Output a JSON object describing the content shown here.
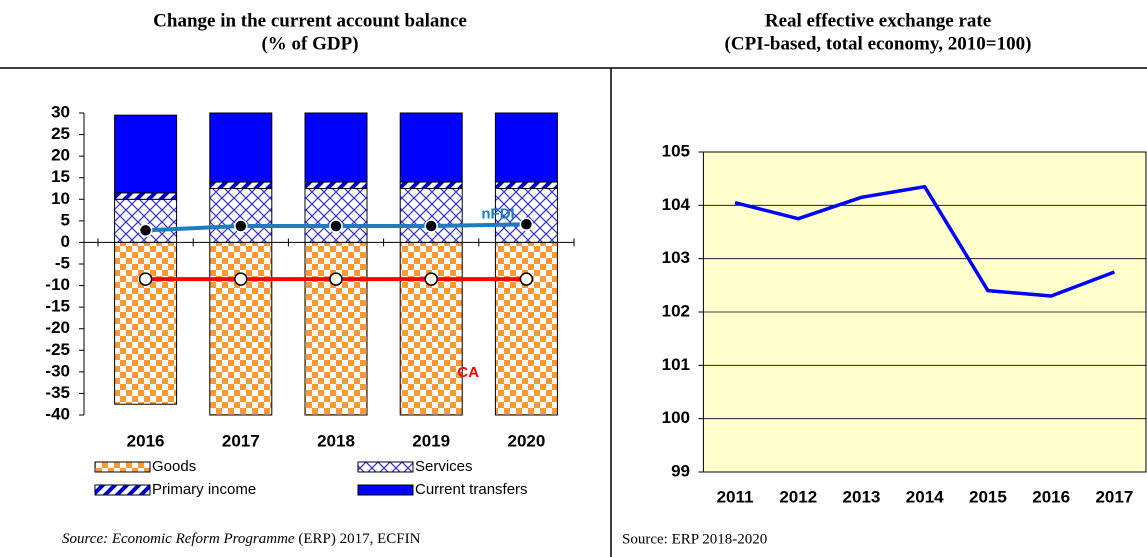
{
  "chart_data": [
    {
      "type": "stacked_bar_line",
      "title": "Change in the current account balance",
      "subtitle": "(% of GDP)",
      "categories": [
        "2016",
        "2017",
        "2018",
        "2019",
        "2020"
      ],
      "series": [
        {
          "name": "Goods",
          "color": "#ff9933",
          "pattern": "checker",
          "values": [
            -37.5,
            -40,
            -40,
            -40,
            -40
          ]
        },
        {
          "name": "Services",
          "color": "#3333cc",
          "pattern": "crosshatch",
          "values": [
            10,
            12.5,
            12.5,
            12.5,
            12.5
          ]
        },
        {
          "name": "Primary income",
          "color": "#0000cc",
          "pattern": "diagonal",
          "values": [
            1.5,
            1.5,
            1.5,
            1.5,
            1.5
          ]
        },
        {
          "name": "Current transfers",
          "color": "#0000ff",
          "pattern": "solid",
          "values": [
            18,
            16,
            16,
            16,
            16
          ]
        }
      ],
      "lines": [
        {
          "name": "nFDI",
          "color": "#1f7bbf",
          "marker_fill": "#000000",
          "values": [
            2.8,
            3.8,
            3.8,
            3.8,
            4.2
          ]
        },
        {
          "name": "CA",
          "color": "#ff0000",
          "marker_fill": "#ffffff",
          "values": [
            -8.5,
            -8.5,
            -8.5,
            -8.5,
            -8.5
          ]
        }
      ],
      "ylim": [
        -40,
        30
      ],
      "yticks": [
        -40,
        -35,
        -30,
        -25,
        -20,
        -15,
        -10,
        -5,
        0,
        5,
        10,
        15,
        20,
        25,
        30
      ],
      "source": [
        "Source: Economic Reform Programme",
        " (ERP) 2017,  ECFIN"
      ]
    },
    {
      "type": "line",
      "title": "Real effective exchange rate",
      "subtitle": "(CPI-based, total economy, 2010=100)",
      "categories": [
        "2011",
        "2012",
        "2013",
        "2014",
        "2015",
        "2016",
        "2017"
      ],
      "values": [
        104.05,
        103.75,
        104.15,
        104.35,
        102.4,
        102.3,
        102.75
      ],
      "color": "#0000ff",
      "background": "#ffffcc",
      "ylim": [
        99,
        105
      ],
      "yticks": [
        99,
        100,
        101,
        102,
        103,
        104,
        105
      ],
      "grid": true,
      "source": "Source: ERP 2018-2020"
    }
  ]
}
